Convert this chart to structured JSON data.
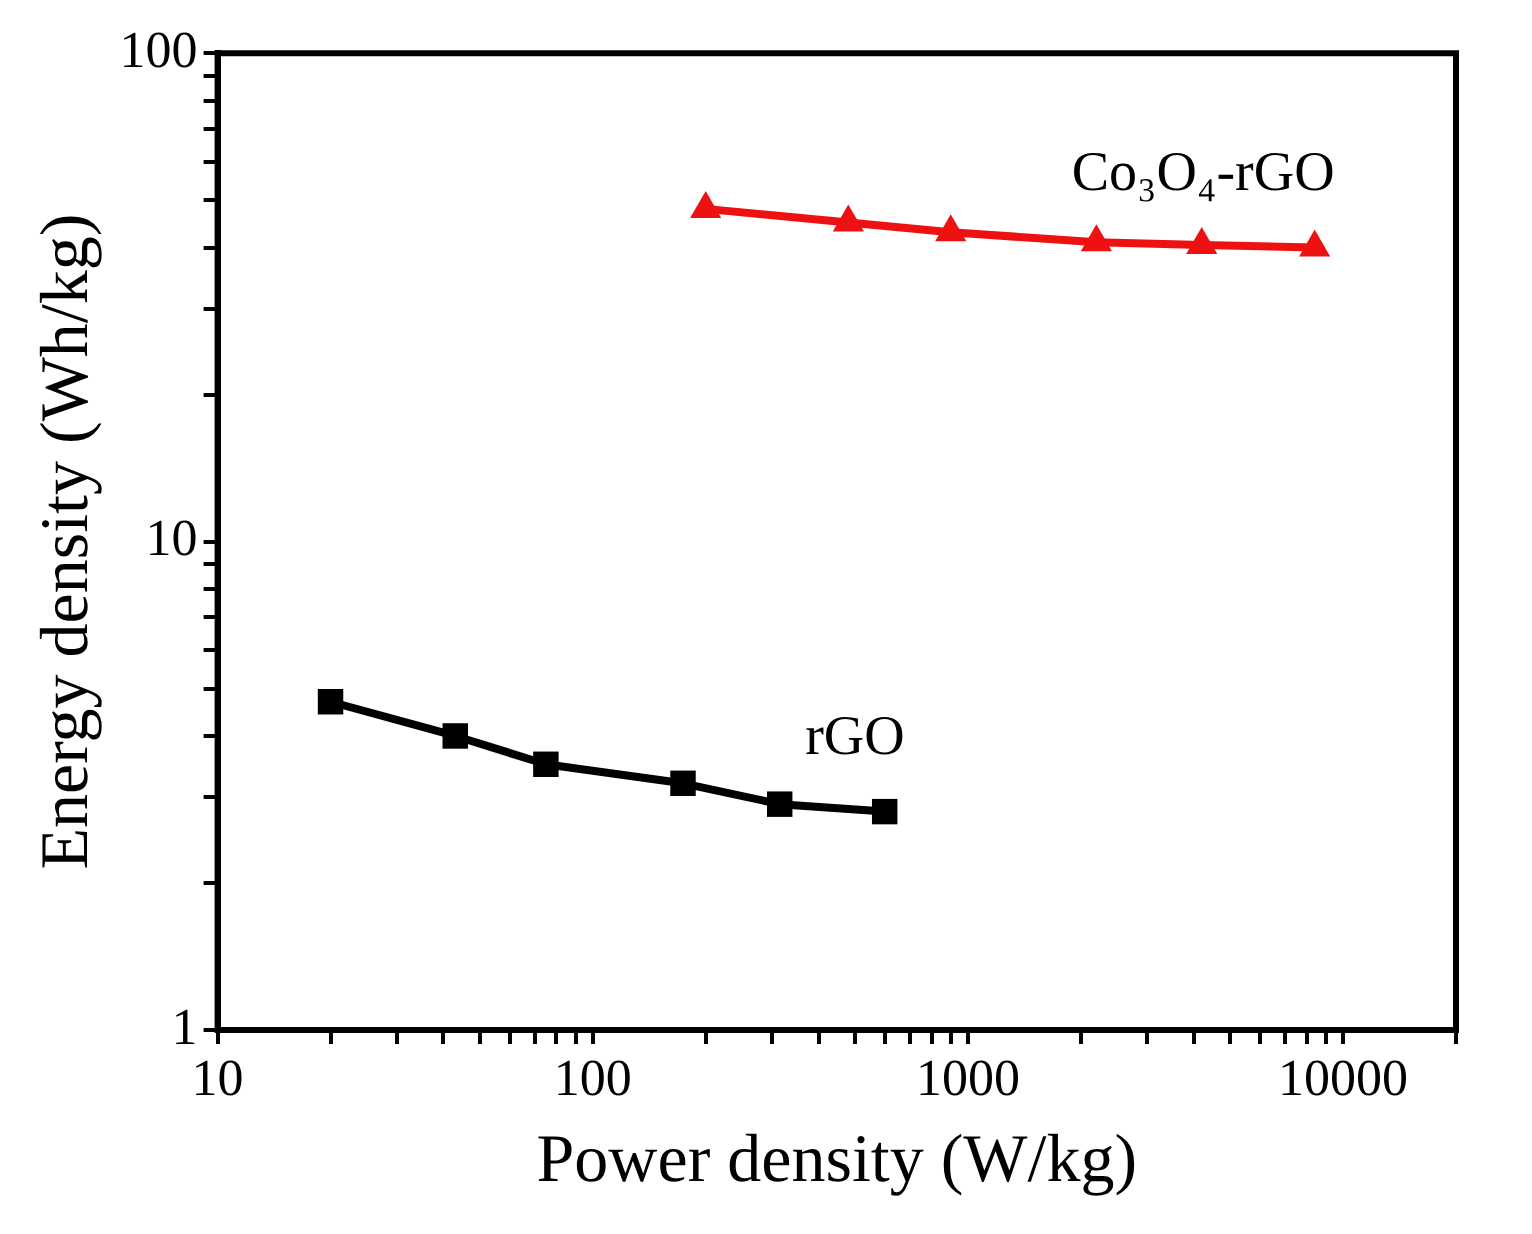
{
  "chart_data": {
    "type": "line",
    "xlabel": "Power density (W/kg)",
    "ylabel": "Energy density (Wh/kg)",
    "log": "xy",
    "xlim": [
      10,
      20000
    ],
    "ylim": [
      1,
      100
    ],
    "xticks": [
      10,
      {
        "value": 20,
        "label": null
      },
      {
        "value": 30,
        "label": null
      },
      {
        "value": 40,
        "label": null
      },
      {
        "value": 50,
        "label": null
      },
      {
        "value": 60,
        "label": null
      },
      {
        "value": 70,
        "label": null
      },
      {
        "value": 80,
        "label": null
      },
      {
        "value": 90,
        "label": null
      },
      100,
      {
        "value": 200,
        "label": null
      },
      {
        "value": 300,
        "label": null
      },
      {
        "value": 400,
        "label": null
      },
      {
        "value": 500,
        "label": null
      },
      {
        "value": 600,
        "label": null
      },
      {
        "value": 700,
        "label": null
      },
      {
        "value": 800,
        "label": null
      },
      {
        "value": 900,
        "label": null
      },
      1000,
      {
        "value": 2000,
        "label": null
      },
      {
        "value": 3000,
        "label": null
      },
      {
        "value": 4000,
        "label": null
      },
      {
        "value": 5000,
        "label": null
      },
      {
        "value": 6000,
        "label": null
      },
      {
        "value": 7000,
        "label": null
      },
      {
        "value": 8000,
        "label": null
      },
      {
        "value": 9000,
        "label": null
      },
      10000,
      {
        "value": 20000,
        "label": null
      }
    ],
    "yticks": [
      1,
      {
        "value": 2,
        "label": null
      },
      {
        "value": 3,
        "label": null
      },
      {
        "value": 4,
        "label": null
      },
      {
        "value": 5,
        "label": null
      },
      {
        "value": 6,
        "label": null
      },
      {
        "value": 7,
        "label": null
      },
      {
        "value": 8,
        "label": null
      },
      {
        "value": 9,
        "label": null
      },
      10,
      {
        "value": 20,
        "label": null
      },
      {
        "value": 30,
        "label": null
      },
      {
        "value": 40,
        "label": null
      },
      {
        "value": 50,
        "label": null
      },
      {
        "value": 60,
        "label": null
      },
      {
        "value": 70,
        "label": null
      },
      {
        "value": 80,
        "label": null
      },
      {
        "value": 90,
        "label": null
      },
      100
    ],
    "grid": false,
    "legend": false,
    "line_style": "solid",
    "series": [
      {
        "name": "Co₃O₄-rGO",
        "color": "#ee1111",
        "marker": "triangle",
        "x": [
          200,
          480,
          900,
          2200,
          4200,
          8400
        ],
        "values": [
          48,
          45,
          43,
          41,
          40.5,
          40
        ]
      },
      {
        "name": "rGO",
        "color": "#000000",
        "marker": "square",
        "x": [
          20,
          43,
          75,
          174,
          315,
          600
        ],
        "values": [
          4.7,
          4.0,
          3.5,
          3.2,
          2.9,
          2.8
        ]
      }
    ]
  }
}
